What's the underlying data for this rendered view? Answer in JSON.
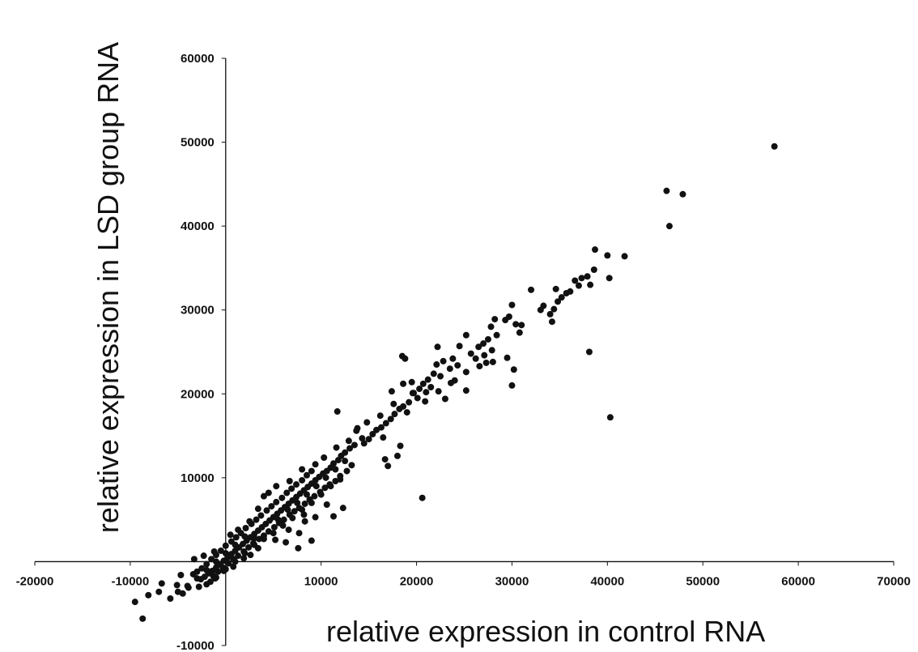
{
  "chart_data": {
    "type": "scatter",
    "title": "",
    "xlabel": "relative expression in control RNA",
    "ylabel": "relative expression in LSD group RNA",
    "xlim": [
      -20000,
      70000
    ],
    "ylim": [
      -10000,
      60000
    ],
    "x_ticks": [
      -20000,
      -10000,
      10000,
      20000,
      30000,
      40000,
      50000,
      60000,
      70000
    ],
    "y_ticks": [
      -10000,
      10000,
      20000,
      30000,
      40000,
      50000,
      60000
    ],
    "grid": false,
    "legend": "none",
    "point_color": "#111111",
    "series": [
      {
        "values_note": "",
        "points": [
          [
            57500,
            49500
          ],
          [
            46200,
            44200
          ],
          [
            47900,
            43800
          ],
          [
            46500,
            40000
          ],
          [
            41800,
            36400
          ],
          [
            40000,
            36500
          ],
          [
            38700,
            37200
          ],
          [
            40200,
            33800
          ],
          [
            38600,
            34800
          ],
          [
            38200,
            33000
          ],
          [
            37900,
            34000
          ],
          [
            37300,
            33800
          ],
          [
            37000,
            32900
          ],
          [
            36600,
            33500
          ],
          [
            36100,
            32200
          ],
          [
            35700,
            32000
          ],
          [
            35200,
            31500
          ],
          [
            34800,
            31000
          ],
          [
            34400,
            30100
          ],
          [
            34000,
            29500
          ],
          [
            34200,
            28600
          ],
          [
            33300,
            30500
          ],
          [
            33000,
            30000
          ],
          [
            34600,
            32500
          ],
          [
            32000,
            32400
          ],
          [
            38100,
            25000
          ],
          [
            40300,
            17200
          ],
          [
            20600,
            7600
          ],
          [
            30000,
            21000
          ],
          [
            30000,
            30600
          ],
          [
            29700,
            29200
          ],
          [
            29300,
            28800
          ],
          [
            30400,
            28300
          ],
          [
            31000,
            28200
          ],
          [
            30800,
            27300
          ],
          [
            28200,
            28900
          ],
          [
            27800,
            28000
          ],
          [
            28400,
            27000
          ],
          [
            27500,
            26500
          ],
          [
            27000,
            26000
          ],
          [
            27900,
            25200
          ],
          [
            26500,
            25600
          ],
          [
            27100,
            24600
          ],
          [
            27300,
            23700
          ],
          [
            26200,
            24200
          ],
          [
            25700,
            24800
          ],
          [
            26600,
            23300
          ],
          [
            29500,
            24300
          ],
          [
            28000,
            23800
          ],
          [
            30200,
            22900
          ],
          [
            25200,
            27000
          ],
          [
            24500,
            25700
          ],
          [
            23800,
            24200
          ],
          [
            24300,
            23400
          ],
          [
            23500,
            23000
          ],
          [
            22800,
            23900
          ],
          [
            22100,
            23500
          ],
          [
            21800,
            22400
          ],
          [
            22500,
            22100
          ],
          [
            21200,
            21700
          ],
          [
            20700,
            21200
          ],
          [
            21500,
            20800
          ],
          [
            20300,
            20600
          ],
          [
            19700,
            20100
          ],
          [
            20100,
            19500
          ],
          [
            19200,
            19000
          ],
          [
            18600,
            18500
          ],
          [
            19000,
            17800
          ],
          [
            18200,
            18200
          ],
          [
            17700,
            17600
          ],
          [
            17300,
            17000
          ],
          [
            16800,
            16500
          ],
          [
            16300,
            16000
          ],
          [
            15800,
            15700
          ],
          [
            16500,
            14800
          ],
          [
            15400,
            15200
          ],
          [
            15000,
            14600
          ],
          [
            14500,
            14100
          ],
          [
            18500,
            24500
          ],
          [
            18800,
            24200
          ],
          [
            18300,
            13800
          ],
          [
            18000,
            12600
          ],
          [
            16700,
            12200
          ],
          [
            17000,
            11400
          ],
          [
            19500,
            21400
          ],
          [
            21000,
            20200
          ],
          [
            24000,
            21600
          ],
          [
            23000,
            19400
          ],
          [
            25200,
            22600
          ],
          [
            22200,
            25600
          ],
          [
            18600,
            21200
          ],
          [
            17400,
            20300
          ],
          [
            11700,
            17900
          ],
          [
            13800,
            15900
          ],
          [
            14300,
            14700
          ],
          [
            13500,
            13900
          ],
          [
            13000,
            13500
          ],
          [
            12500,
            13000
          ],
          [
            12100,
            12600
          ],
          [
            11800,
            12100
          ],
          [
            11300,
            11700
          ],
          [
            11000,
            11200
          ],
          [
            10600,
            10800
          ],
          [
            10200,
            10500
          ],
          [
            9800,
            10100
          ],
          [
            9400,
            9700
          ],
          [
            9000,
            9300
          ],
          [
            8600,
            8900
          ],
          [
            8200,
            8500
          ],
          [
            7800,
            8100
          ],
          [
            7400,
            7700
          ],
          [
            7000,
            7300
          ],
          [
            6600,
            6900
          ],
          [
            6200,
            6500
          ],
          [
            5800,
            6100
          ],
          [
            5400,
            5700
          ],
          [
            5000,
            5300
          ],
          [
            4600,
            4900
          ],
          [
            4200,
            4500
          ],
          [
            3800,
            4100
          ],
          [
            3400,
            3700
          ],
          [
            3000,
            3300
          ],
          [
            2600,
            2900
          ],
          [
            2200,
            2500
          ],
          [
            1800,
            2100
          ],
          [
            1400,
            1700
          ],
          [
            1000,
            1300
          ],
          [
            600,
            900
          ],
          [
            200,
            500
          ],
          [
            -200,
            100
          ],
          [
            -600,
            -300
          ],
          [
            -1000,
            -700
          ],
          [
            -1400,
            -1100
          ],
          [
            -1800,
            -1400
          ],
          [
            -2200,
            -1800
          ],
          [
            -2600,
            -2100
          ],
          [
            13200,
            11500
          ],
          [
            12700,
            10800
          ],
          [
            12000,
            10200
          ],
          [
            11500,
            9600
          ],
          [
            10900,
            9200
          ],
          [
            10400,
            8800
          ],
          [
            9900,
            8300
          ],
          [
            9300,
            7800
          ],
          [
            8800,
            7400
          ],
          [
            8300,
            6900
          ],
          [
            7700,
            6400
          ],
          [
            7200,
            6000
          ],
          [
            6700,
            5600
          ],
          [
            6100,
            5000
          ],
          [
            5600,
            4600
          ],
          [
            5100,
            4100
          ],
          [
            4500,
            3600
          ],
          [
            4000,
            3100
          ],
          [
            3500,
            2700
          ],
          [
            2900,
            2200
          ],
          [
            2400,
            1700
          ],
          [
            1900,
            1200
          ],
          [
            1300,
            700
          ],
          [
            800,
            300
          ],
          [
            300,
            -200
          ],
          [
            -300,
            -700
          ],
          [
            -800,
            -1200
          ],
          [
            -1300,
            -1700
          ],
          [
            9000,
            10800
          ],
          [
            8500,
            10300
          ],
          [
            8000,
            9700
          ],
          [
            7400,
            9200
          ],
          [
            6900,
            8700
          ],
          [
            6400,
            8200
          ],
          [
            5900,
            7600
          ],
          [
            5300,
            7100
          ],
          [
            4800,
            6600
          ],
          [
            4300,
            6100
          ],
          [
            3700,
            5500
          ],
          [
            3200,
            5000
          ],
          [
            2700,
            4500
          ],
          [
            2100,
            4000
          ],
          [
            1600,
            3400
          ],
          [
            1100,
            2900
          ],
          [
            600,
            2400
          ],
          [
            0,
            1900
          ],
          [
            -500,
            1300
          ],
          [
            -1000,
            800
          ],
          [
            -1500,
            300
          ],
          [
            -2000,
            -300
          ],
          [
            -2500,
            -800
          ],
          [
            -3000,
            -1200
          ],
          [
            4000,
            7800
          ],
          [
            10600,
            6800
          ],
          [
            6600,
            3800
          ],
          [
            7700,
            3400
          ],
          [
            12300,
            6400
          ],
          [
            11300,
            5400
          ],
          [
            8300,
            4800
          ],
          [
            9400,
            5300
          ],
          [
            7600,
            1600
          ],
          [
            9000,
            2500
          ],
          [
            8200,
            5600
          ],
          [
            6300,
            2300
          ],
          [
            5200,
            2600
          ],
          [
            3400,
            1600
          ],
          [
            2600,
            800
          ],
          [
            1900,
            400
          ],
          [
            800,
            -600
          ],
          [
            -200,
            -1100
          ],
          [
            -1100,
            -2000
          ],
          [
            -1600,
            -2400
          ],
          [
            -2800,
            -3000
          ],
          [
            -3900,
            -3100
          ],
          [
            -4500,
            -3800
          ],
          [
            -5800,
            -4400
          ],
          [
            -9500,
            -4800
          ],
          [
            -8700,
            -6800
          ],
          [
            -8100,
            -4000
          ],
          [
            -6700,
            -2600
          ],
          [
            -7000,
            -3600
          ],
          [
            -4700,
            -1600
          ],
          [
            -5100,
            -2800
          ],
          [
            -3400,
            -1500
          ],
          [
            -3300,
            300
          ],
          [
            -1200,
            1200
          ],
          [
            -2300,
            700
          ],
          [
            500,
            3200
          ],
          [
            1300,
            3800
          ],
          [
            2500,
            4800
          ],
          [
            3400,
            6300
          ],
          [
            4500,
            8200
          ],
          [
            5300,
            9000
          ],
          [
            6700,
            9600
          ],
          [
            8000,
            11000
          ],
          [
            9400,
            11600
          ],
          [
            10300,
            12400
          ],
          [
            11600,
            13600
          ],
          [
            12900,
            14400
          ],
          [
            13700,
            15600
          ],
          [
            14800,
            16600
          ],
          [
            16200,
            17400
          ],
          [
            17600,
            18800
          ],
          [
            19600,
            20100
          ],
          [
            20900,
            19100
          ],
          [
            22300,
            20300
          ],
          [
            23600,
            21300
          ],
          [
            25200,
            20400
          ],
          [
            5000,
            3400
          ],
          [
            6000,
            4300
          ],
          [
            7000,
            5200
          ],
          [
            8000,
            6200
          ],
          [
            9000,
            7000
          ],
          [
            10000,
            8000
          ],
          [
            11000,
            9000
          ],
          [
            12000,
            9800
          ],
          [
            3000,
            2000
          ],
          [
            2000,
            1000
          ],
          [
            1000,
            0
          ],
          [
            0,
            -900
          ],
          [
            -1000,
            -1900
          ],
          [
            -2000,
            -2700
          ],
          [
            4000,
            2700
          ],
          [
            3000,
            2800
          ],
          [
            5500,
            5000
          ],
          [
            6500,
            6200
          ],
          [
            7500,
            7000
          ],
          [
            8500,
            8000
          ],
          [
            9500,
            9000
          ],
          [
            10500,
            10000
          ],
          [
            11500,
            11000
          ],
          [
            12500,
            12000
          ],
          [
            2000,
            3000
          ],
          [
            1000,
            2000
          ],
          [
            0,
            1000
          ],
          [
            -1000,
            0
          ],
          [
            -2000,
            -1000
          ],
          [
            -3000,
            -2000
          ],
          [
            -4000,
            -2900
          ],
          [
            -5000,
            -3600
          ]
        ]
      }
    ]
  }
}
